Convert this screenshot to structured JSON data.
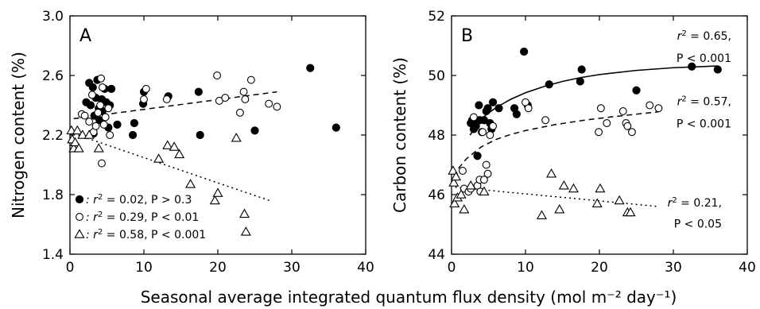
{
  "x_axis_title": "Seasonal average integrated quantum flux density (mol m⁻² day⁻¹)",
  "colors": {
    "ink": "#000000",
    "open_fill": "#ffffff"
  },
  "chart_data": [
    {
      "type": "scatter",
      "panel_label": "A",
      "ylabel": "Nitrogen content (%)",
      "xlim": [
        0,
        40
      ],
      "ylim": [
        1.4,
        3.0
      ],
      "xticks": [
        0,
        10,
        20,
        30,
        40
      ],
      "xtick_labels": [
        "0",
        "10",
        "20",
        "30",
        "40"
      ],
      "yticks": [
        1.4,
        1.8,
        2.2,
        2.6,
        3.0
      ],
      "ytick_labels": [
        "1.4",
        "1.8",
        "2.2",
        "2.6",
        "3.0"
      ],
      "legend_position": "bottom-left",
      "series": [
        {
          "marker": "filled-circle",
          "legend_label": ": r² = 0.02, P > 0.3",
          "points": [
            [
              2.2,
              2.42
            ],
            [
              2.6,
              2.55
            ],
            [
              2.8,
              2.4
            ],
            [
              3.1,
              2.52
            ],
            [
              3.2,
              2.21
            ],
            [
              3.3,
              2.33
            ],
            [
              3.5,
              2.45
            ],
            [
              3.7,
              2.57
            ],
            [
              3.9,
              2.38
            ],
            [
              4.0,
              2.3
            ],
            [
              4.3,
              2.44
            ],
            [
              4.4,
              2.36
            ],
            [
              4.7,
              2.51
            ],
            [
              4.9,
              2.42
            ],
            [
              5.2,
              2.25
            ],
            [
              5.4,
              2.4
            ],
            [
              5.6,
              2.51
            ],
            [
              6.4,
              2.27
            ],
            [
              8.5,
              2.2
            ],
            [
              8.7,
              2.28
            ],
            [
              9.9,
              2.41
            ],
            [
              10.0,
              2.49
            ],
            [
              13.3,
              2.46
            ],
            [
              17.4,
              2.49
            ],
            [
              17.6,
              2.2
            ],
            [
              25.0,
              2.23
            ],
            [
              32.5,
              2.65
            ],
            [
              36.0,
              2.25
            ]
          ],
          "trend": {
            "style": "dashed",
            "x": [
              0.5,
              28
            ],
            "y": [
              2.31,
              2.49
            ]
          }
        },
        {
          "marker": "open-circle",
          "legend_label": ": r² = 0.29, P < 0.01",
          "points": [
            [
              1.6,
              2.34
            ],
            [
              2.0,
              2.33
            ],
            [
              2.6,
              2.29
            ],
            [
              3.0,
              2.47
            ],
            [
              3.2,
              2.22
            ],
            [
              3.5,
              2.26
            ],
            [
              3.8,
              2.35
            ],
            [
              4.1,
              2.4
            ],
            [
              4.2,
              2.58
            ],
            [
              4.4,
              2.52
            ],
            [
              4.6,
              2.27
            ],
            [
              4.8,
              2.32
            ],
            [
              5.2,
              2.38
            ],
            [
              5.4,
              2.2
            ],
            [
              10.0,
              2.44
            ],
            [
              10.3,
              2.51
            ],
            [
              13.1,
              2.44
            ],
            [
              19.9,
              2.6
            ],
            [
              20.2,
              2.43
            ],
            [
              21.0,
              2.45
            ],
            [
              23.0,
              2.35
            ],
            [
              23.5,
              2.49
            ],
            [
              23.7,
              2.44
            ],
            [
              24.5,
              2.57
            ],
            [
              26.9,
              2.41
            ],
            [
              28.0,
              2.39
            ],
            [
              4.3,
              2.01
            ]
          ],
          "trend": null
        },
        {
          "marker": "open-triangle",
          "legend_label": ": r² = 0.58, P < 0.001",
          "points": [
            [
              0.2,
              2.23
            ],
            [
              0.3,
              2.17
            ],
            [
              0.5,
              2.11
            ],
            [
              0.7,
              2.15
            ],
            [
              1.0,
              2.23
            ],
            [
              1.2,
              2.11
            ],
            [
              1.7,
              2.2
            ],
            [
              2.6,
              2.2
            ],
            [
              3.9,
              2.11
            ],
            [
              12.0,
              2.04
            ],
            [
              13.2,
              2.13
            ],
            [
              14.1,
              2.12
            ],
            [
              14.8,
              2.07
            ],
            [
              16.3,
              1.87
            ],
            [
              19.6,
              1.76
            ],
            [
              20.0,
              1.81
            ],
            [
              22.5,
              2.18
            ],
            [
              23.6,
              1.67
            ],
            [
              23.8,
              1.55
            ]
          ],
          "trend": {
            "style": "dotted",
            "x": [
              0.5,
              27
            ],
            "y": [
              2.21,
              1.76
            ]
          }
        }
      ]
    },
    {
      "type": "scatter",
      "panel_label": "B",
      "ylabel": "Carbon content (%)",
      "xlim": [
        0,
        40
      ],
      "ylim": [
        44,
        52
      ],
      "xticks": [
        0,
        10,
        20,
        30,
        40
      ],
      "xtick_labels": [
        "0",
        "10",
        "20",
        "30",
        "40"
      ],
      "yticks": [
        44,
        46,
        48,
        50,
        52
      ],
      "ytick_labels": [
        "44",
        "46",
        "48",
        "50",
        "52"
      ],
      "series": [
        {
          "marker": "filled-circle",
          "annotation": [
            "r² = 0.65,",
            "P < 0.001"
          ],
          "points": [
            [
              2.6,
              48.4
            ],
            [
              2.8,
              48.5
            ],
            [
              3.0,
              48.2
            ],
            [
              3.2,
              48.4
            ],
            [
              3.3,
              48.3
            ],
            [
              3.5,
              47.3
            ],
            [
              3.7,
              49.0
            ],
            [
              3.8,
              48.5
            ],
            [
              4.1,
              48.1
            ],
            [
              4.4,
              48.5
            ],
            [
              4.7,
              48.8
            ],
            [
              4.9,
              48.9
            ],
            [
              5.2,
              48.4
            ],
            [
              5.4,
              48.2
            ],
            [
              5.6,
              49.1
            ],
            [
              6.4,
              48.9
            ],
            [
              8.5,
              48.9
            ],
            [
              8.8,
              48.7
            ],
            [
              9.8,
              50.8
            ],
            [
              10.3,
              49.0
            ],
            [
              13.2,
              49.7
            ],
            [
              17.4,
              49.8
            ],
            [
              17.6,
              50.2
            ],
            [
              25.0,
              49.5
            ],
            [
              32.5,
              50.3
            ],
            [
              36.0,
              50.2
            ]
          ],
          "trend": {
            "style": "solid",
            "x": [
              2.5,
              4,
              6,
              8,
              10,
              12.5,
              15,
              17.5,
              20,
              25,
              30,
              36
            ],
            "y": [
              48.0,
              48.55,
              48.92,
              49.2,
              49.42,
              49.63,
              49.8,
              49.93,
              50.03,
              50.17,
              50.26,
              50.32
            ]
          }
        },
        {
          "marker": "open-circle",
          "annotation": [
            "r² = 0.57,",
            "P < 0.001"
          ],
          "points": [
            [
              1.5,
              46.8
            ],
            [
              1.7,
              46.2
            ],
            [
              2.3,
              46.1
            ],
            [
              2.6,
              46.2
            ],
            [
              3.0,
              48.6
            ],
            [
              3.5,
              46.3
            ],
            [
              3.8,
              46.5
            ],
            [
              3.9,
              46.1
            ],
            [
              4.2,
              48.1
            ],
            [
              4.4,
              46.5
            ],
            [
              4.7,
              47.0
            ],
            [
              4.9,
              46.7
            ],
            [
              5.2,
              48.0
            ],
            [
              5.6,
              48.3
            ],
            [
              10.0,
              49.1
            ],
            [
              10.4,
              48.9
            ],
            [
              12.7,
              48.5
            ],
            [
              19.9,
              48.1
            ],
            [
              20.2,
              48.9
            ],
            [
              21.0,
              48.4
            ],
            [
              23.2,
              48.8
            ],
            [
              23.6,
              48.4
            ],
            [
              23.8,
              48.3
            ],
            [
              24.4,
              48.1
            ],
            [
              26.8,
              49.0
            ],
            [
              28.0,
              48.9
            ]
          ],
          "trend": {
            "style": "dashed",
            "x": [
              0.3,
              1,
              2,
              4,
              6,
              8,
              10,
              14,
              18,
              22,
              28
            ],
            "y": [
              46.6,
              46.9,
              47.2,
              47.6,
              47.85,
              48.02,
              48.15,
              48.35,
              48.5,
              48.62,
              48.78
            ]
          }
        },
        {
          "marker": "open-triangle",
          "annotation": [
            "r² = 0.21,",
            "P < 0.05"
          ],
          "points": [
            [
              0.2,
              46.8
            ],
            [
              0.3,
              46.4
            ],
            [
              0.4,
              45.7
            ],
            [
              0.6,
              46.6
            ],
            [
              0.8,
              45.9
            ],
            [
              1.3,
              46.0
            ],
            [
              1.7,
              45.5
            ],
            [
              2.6,
              46.3
            ],
            [
              4.4,
              46.1
            ],
            [
              12.2,
              45.3
            ],
            [
              13.5,
              46.7
            ],
            [
              14.6,
              45.5
            ],
            [
              15.2,
              46.3
            ],
            [
              16.5,
              46.2
            ],
            [
              19.7,
              45.7
            ],
            [
              20.1,
              46.2
            ],
            [
              22.7,
              45.8
            ],
            [
              23.8,
              45.4
            ],
            [
              24.2,
              45.4
            ]
          ],
          "trend": {
            "style": "dotted",
            "x": [
              0.5,
              28
            ],
            "y": [
              46.25,
              45.6
            ]
          }
        }
      ]
    }
  ]
}
